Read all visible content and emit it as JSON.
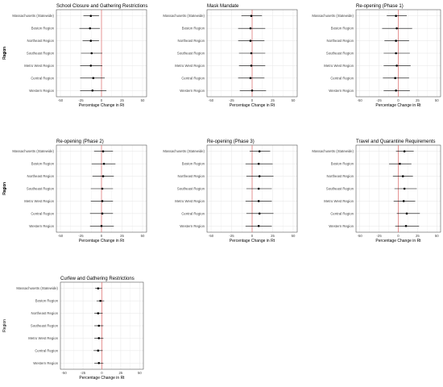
{
  "chart_data": [
    {
      "type": "scatter",
      "title": "School Closure and Gathering Restrictions",
      "xlabel": "Percentage Change in Rt",
      "ylabel": "Region",
      "xlim": [
        -50,
        50
      ],
      "xticks": [
        -50,
        -25,
        0,
        25,
        50
      ],
      "categories": [
        "Massachusetts (Statewide)",
        "Boston Region",
        "Northeast Region",
        "Southeast Region",
        "Metro West Region",
        "Central Region",
        "Western Region"
      ],
      "estimates": [
        -13,
        -14,
        -13,
        -12,
        -13,
        -10,
        -11
      ],
      "ci_lower": [
        -22,
        -27,
        -23,
        -25,
        -26,
        -26,
        -26
      ],
      "ci_upper": [
        -3,
        -2,
        -3,
        1,
        1,
        4,
        6
      ],
      "reference_line": 0
    },
    {
      "type": "scatter",
      "title": "Mask Mandate",
      "xlabel": "Percentage Change in Rt",
      "ylabel": "Region",
      "xlim": [
        -50,
        50
      ],
      "xticks": [
        -50,
        -25,
        0,
        25,
        50
      ],
      "categories": [
        "Massachusetts (Statewide)",
        "Boston Region",
        "Northeast Region",
        "Southeast Region",
        "Metro West Region",
        "Central Region",
        "Western Region"
      ],
      "estimates": [
        -1,
        -2,
        -2,
        -1,
        -1,
        -2,
        0
      ],
      "ci_lower": [
        -13,
        -17,
        -17,
        -16,
        -16,
        -17,
        -15
      ],
      "ci_upper": [
        12,
        16,
        15,
        16,
        16,
        15,
        17
      ],
      "reference_line": 0
    },
    {
      "type": "scatter",
      "title": "Re-opening (Phase 1)",
      "xlabel": "Percentage Change in Rt",
      "ylabel": "Region",
      "xlim": [
        -50,
        50
      ],
      "xticks": [
        -50,
        -25,
        0,
        25,
        50
      ],
      "categories": [
        "Massachusetts (Statewide)",
        "Boston Region",
        "Northeast Region",
        "Southeast Region",
        "Metro West Region",
        "Central Region",
        "Western Region"
      ],
      "estimates": [
        -3,
        -2,
        -3,
        -3,
        -2,
        -4,
        -3
      ],
      "ci_lower": [
        -15,
        -21,
        -18,
        -19,
        -19,
        -20,
        -19
      ],
      "ci_upper": [
        11,
        18,
        14,
        15,
        16,
        14,
        15
      ],
      "reference_line": 0
    },
    {
      "type": "scatter",
      "title": "Re-opening (Phase 2)",
      "xlabel": "Percentage Change in Rt",
      "ylabel": "Region",
      "xlim": [
        -50,
        50
      ],
      "xticks": [
        -50,
        -25,
        0,
        25,
        50
      ],
      "categories": [
        "Massachusetts (Statewide)",
        "Boston Region",
        "Northeast Region",
        "Southeast Region",
        "Metro West Region",
        "Central Region",
        "Western Region"
      ],
      "estimates": [
        2,
        3,
        2,
        1,
        1,
        1,
        0
      ],
      "ci_lower": [
        -9,
        -12,
        -11,
        -13,
        -13,
        -14,
        -14
      ],
      "ci_upper": [
        14,
        17,
        15,
        14,
        14,
        14,
        15
      ],
      "reference_line": 0
    },
    {
      "type": "scatter",
      "title": "Re-opening (Phase 3)",
      "xlabel": "Percentage Change in Rt",
      "ylabel": "Region",
      "xlim": [
        -50,
        50
      ],
      "xticks": [
        -50,
        -25,
        0,
        25,
        50
      ],
      "categories": [
        "Massachusetts (Statewide)",
        "Boston Region",
        "Northeast Region",
        "Southeast Region",
        "Metro West Region",
        "Central Region",
        "Western Region"
      ],
      "estimates": [
        9,
        8,
        9,
        8,
        8,
        9,
        8
      ],
      "ci_lower": [
        -3,
        -8,
        -7,
        -7,
        -8,
        -7,
        -8
      ],
      "ci_upper": [
        22,
        25,
        26,
        24,
        24,
        26,
        24
      ],
      "reference_line": 0
    },
    {
      "type": "scatter",
      "title": "Travel and Quarantine Requirements",
      "xlabel": "Percentage Change in Rt",
      "ylabel": "Region",
      "xlim": [
        -50,
        50
      ],
      "xticks": [
        -50,
        -25,
        0,
        25,
        50
      ],
      "categories": [
        "Massachusetts (Statewide)",
        "Boston Region",
        "Northeast Region",
        "Southeast Region",
        "Metro West Region",
        "Central Region",
        "Western Region"
      ],
      "estimates": [
        8,
        2,
        6,
        8,
        7,
        11,
        10
      ],
      "ci_lower": [
        -3,
        -12,
        -7,
        -5,
        -6,
        -2,
        -4
      ],
      "ci_upper": [
        20,
        17,
        19,
        24,
        22,
        28,
        27
      ],
      "reference_line": 0
    },
    {
      "type": "scatter",
      "title": "Curfew and Gathering Restrictions",
      "xlabel": "Percentage Change in Rt",
      "ylabel": "Region",
      "xlim": [
        -50,
        50
      ],
      "xticks": [
        -50,
        -25,
        0,
        25,
        50
      ],
      "categories": [
        "Massachusetts (Statewide)",
        "Boston Region",
        "Northeast Region",
        "Southeast Region",
        "Metro West Region",
        "Central Region",
        "Western Region"
      ],
      "estimates": [
        -5,
        -2,
        -5,
        -4,
        -4,
        -5,
        -4
      ],
      "ci_lower": [
        -9,
        -7,
        -10,
        -10,
        -10,
        -11,
        -10
      ],
      "ci_upper": [
        0,
        3,
        1,
        2,
        2,
        1,
        2
      ],
      "reference_line": 0
    }
  ]
}
